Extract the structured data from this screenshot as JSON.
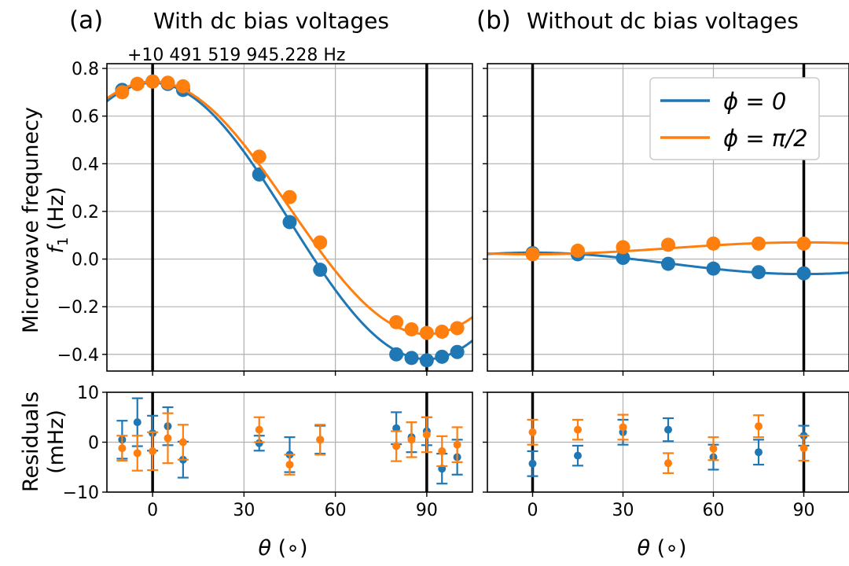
{
  "colors": {
    "phi0": "#1f77b4",
    "phi90": "#ff7f0e",
    "grid": "#b0b0b0",
    "vline": "#000000"
  },
  "ylabel": {
    "line1": "Microwave frequnecy",
    "line2_var": "f",
    "line2_sub": "1",
    "line2_unit": " (Hz)"
  },
  "resid_ylabel": {
    "line1": "Residuals",
    "line2": "(mHz)"
  },
  "xlabel": {
    "var": "θ",
    "unit": " (∘)"
  },
  "legend": [
    {
      "label": "ϕ = 0",
      "series": "phi0"
    },
    {
      "label": "ϕ = π/2",
      "series": "phi90"
    }
  ],
  "chart_data": [
    {
      "id": "a-main",
      "type": "scatter",
      "panel_tag": "(a)",
      "title": "With dc bias voltages",
      "offset_text": "+10 491 519 945.228 Hz",
      "xlim": [
        -15,
        105
      ],
      "ylim": [
        -0.47,
        0.82
      ],
      "xticks": [
        0,
        30,
        60,
        90
      ],
      "yticks": [
        -0.4,
        -0.2,
        0.0,
        0.2,
        0.4,
        0.6,
        0.8
      ],
      "ytick_labels": [
        "−0.4",
        "−0.2",
        "0.0",
        "0.2",
        "0.4",
        "0.6",
        "0.8"
      ],
      "grid": true,
      "vlines": [
        0,
        90
      ],
      "series": [
        {
          "name": "ϕ = 0",
          "color": "phi0",
          "x": [
            -10,
            -5,
            0,
            5,
            10,
            35,
            45,
            55,
            80,
            85,
            90,
            95,
            100
          ],
          "y": [
            0.71,
            0.735,
            0.745,
            0.735,
            0.71,
            0.355,
            0.155,
            -0.045,
            -0.4,
            -0.415,
            -0.425,
            -0.41,
            -0.39
          ],
          "fit": {
            "A": 0.58,
            "C": 0.16,
            "xmin": -15,
            "xmax": 105
          }
        },
        {
          "name": "ϕ = π/2",
          "color": "phi90",
          "x": [
            -10,
            -5,
            0,
            5,
            10,
            35,
            45,
            55,
            80,
            85,
            90,
            95,
            100
          ],
          "y": [
            0.7,
            0.735,
            0.745,
            0.74,
            0.725,
            0.43,
            0.26,
            0.07,
            -0.265,
            -0.295,
            -0.31,
            -0.305,
            -0.29
          ],
          "fit": {
            "A": 0.53,
            "C": 0.215,
            "xmin": -15,
            "xmax": 105
          }
        }
      ]
    },
    {
      "id": "b-main",
      "type": "scatter",
      "panel_tag": "(b)",
      "title": "Without dc bias voltages",
      "xlim": [
        -15,
        105
      ],
      "ylim": [
        -0.47,
        0.82
      ],
      "xticks": [
        0,
        30,
        60,
        90
      ],
      "grid": true,
      "vlines": [
        0,
        90
      ],
      "series": [
        {
          "name": "ϕ = 0",
          "color": "phi0",
          "x": [
            0,
            15,
            30,
            45,
            60,
            75,
            90
          ],
          "y": [
            0.025,
            0.02,
            0.005,
            -0.02,
            -0.04,
            -0.055,
            -0.06
          ],
          "fit": {
            "A": 0.045,
            "C": -0.018,
            "xmin": -15,
            "xmax": 105
          }
        },
        {
          "name": "ϕ = π/2",
          "color": "phi90",
          "x": [
            0,
            15,
            30,
            45,
            60,
            75,
            90
          ],
          "y": [
            0.02,
            0.035,
            0.05,
            0.06,
            0.065,
            0.065,
            0.065
          ],
          "fit": {
            "A": -0.025,
            "C": 0.045,
            "xmin": -15,
            "xmax": 105
          }
        }
      ]
    },
    {
      "id": "a-resid",
      "type": "scatter",
      "xlim": [
        -15,
        105
      ],
      "ylim": [
        -10,
        10
      ],
      "xticks": [
        0,
        30,
        60,
        90
      ],
      "xtick_labels": [
        "0",
        "30",
        "60",
        "90"
      ],
      "yticks": [
        -10,
        0,
        10
      ],
      "ytick_labels": [
        "−10",
        "0",
        "10"
      ],
      "grid": true,
      "vlines": [
        0,
        90
      ],
      "series": [
        {
          "name": "ϕ = 0",
          "color": "phi0",
          "x": [
            -10,
            -5,
            0,
            5,
            10,
            35,
            45,
            55,
            80,
            85,
            90,
            95,
            100
          ],
          "y": [
            0.5,
            4.0,
            1.8,
            3.2,
            -3.5,
            -0.2,
            -2.5,
            0.5,
            2.8,
            1.0,
            2.2,
            -5.3,
            -3.0
          ],
          "err": [
            3.8,
            4.8,
            3.5,
            3.8,
            3.6,
            1.5,
            3.5,
            2.8,
            3.2,
            3.0,
            2.8,
            3.0,
            3.5
          ]
        },
        {
          "name": "ϕ = π/2",
          "color": "phi90",
          "x": [
            -10,
            -5,
            0,
            5,
            10,
            35,
            45,
            55,
            80,
            85,
            90,
            95,
            100
          ],
          "y": [
            -1.2,
            -2.2,
            -1.8,
            0.8,
            0.0,
            2.5,
            -4.5,
            0.5,
            -0.8,
            0.5,
            1.5,
            -1.8,
            -0.5
          ],
          "err": [
            2.5,
            3.5,
            3.8,
            5.0,
            3.5,
            2.5,
            2.0,
            3.0,
            3.0,
            3.5,
            3.5,
            3.0,
            3.5
          ]
        }
      ]
    },
    {
      "id": "b-resid",
      "type": "scatter",
      "xlim": [
        -15,
        105
      ],
      "ylim": [
        -10,
        10
      ],
      "xticks": [
        0,
        30,
        60,
        90
      ],
      "xtick_labels": [
        "0",
        "30",
        "60",
        "90"
      ],
      "grid": true,
      "vlines": [
        0,
        90
      ],
      "series": [
        {
          "name": "ϕ = 0",
          "color": "phi0",
          "x": [
            0,
            15,
            30,
            45,
            60,
            75,
            90
          ],
          "y": [
            -4.3,
            -2.7,
            2.0,
            2.5,
            -3.0,
            -2.0,
            1.3
          ],
          "err": [
            2.5,
            2.0,
            2.5,
            2.3,
            2.5,
            2.5,
            2.0
          ]
        },
        {
          "name": "ϕ = π/2",
          "color": "phi90",
          "x": [
            0,
            15,
            30,
            45,
            60,
            75,
            90
          ],
          "y": [
            2.0,
            2.5,
            3.0,
            -4.2,
            -1.3,
            3.2,
            -1.2
          ],
          "err": [
            2.5,
            2.0,
            2.5,
            2.0,
            2.3,
            2.2,
            2.5
          ]
        }
      ]
    }
  ]
}
